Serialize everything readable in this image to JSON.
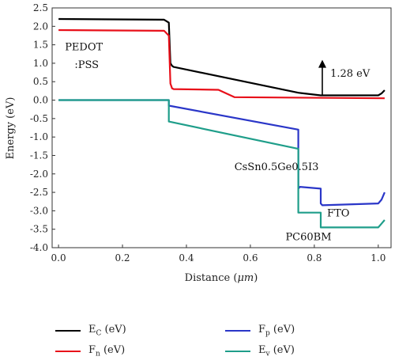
{
  "chart_data": {
    "type": "line",
    "xlabel_prefix": "Distance (",
    "xlabel_unit": "μm",
    "xlabel_suffix": ")",
    "ylabel": "Energy (eV)",
    "xlim": [
      -0.02,
      1.04
    ],
    "ylim": [
      -4.0,
      2.5
    ],
    "xticks": [
      "0.0",
      "0.2",
      "0.4",
      "0.6",
      "0.8",
      "1.0"
    ],
    "yticks": [
      "2.5",
      "2.0",
      "1.5",
      "1.0",
      "0.5",
      "0.0",
      "-0.5",
      "-1.0",
      "-1.5",
      "-2.0",
      "-2.5",
      "-3.0",
      "-3.5",
      "-4.0"
    ],
    "series": [
      {
        "name": "E_C (eV)",
        "color": "#000000",
        "x": [
          0.0,
          0.33,
          0.345,
          0.35,
          0.355,
          0.36,
          0.75,
          0.82,
          1.0,
          1.01,
          1.02
        ],
        "y": [
          2.2,
          2.18,
          2.1,
          1.0,
          0.93,
          0.9,
          0.2,
          0.13,
          0.13,
          0.18,
          0.27
        ]
      },
      {
        "name": "F_n (eV)",
        "color": "#e8101a",
        "x": [
          0.0,
          0.33,
          0.345,
          0.35,
          0.355,
          0.36,
          0.5,
          0.55,
          1.02
        ],
        "y": [
          1.9,
          1.88,
          1.75,
          0.45,
          0.32,
          0.3,
          0.28,
          0.08,
          0.05
        ]
      },
      {
        "name": "F_p (eV)",
        "color": "#2a36c8",
        "x": [
          0.0,
          0.34,
          0.345,
          0.345,
          0.75,
          0.75,
          0.755,
          0.82,
          0.82,
          0.825,
          1.0,
          1.01,
          1.02
        ],
        "y": [
          0.0,
          0.0,
          0.0,
          -0.15,
          -0.8,
          -2.4,
          -2.35,
          -2.4,
          -2.8,
          -2.85,
          -2.8,
          -2.7,
          -2.5
        ]
      },
      {
        "name": "E_v (eV)",
        "color": "#1f9e8a",
        "x": [
          0.0,
          0.34,
          0.345,
          0.345,
          0.75,
          0.75,
          0.82,
          0.82,
          1.0,
          1.01,
          1.02
        ],
        "y": [
          0.0,
          0.0,
          0.0,
          -0.58,
          -1.32,
          -3.05,
          -3.05,
          -3.45,
          -3.45,
          -3.35,
          -3.25
        ]
      }
    ],
    "annotations": [
      {
        "id": "pedot1",
        "text": "PEDOT",
        "x": 0.02,
        "y": 1.35
      },
      {
        "id": "pedot2",
        "text": ":PSS",
        "x": 0.05,
        "y": 0.87
      },
      {
        "id": "gap",
        "text": "1.28 eV",
        "x": 0.85,
        "y": 0.63
      },
      {
        "id": "perov",
        "text": "CsSn0.5Ge0.5I3",
        "x": 0.55,
        "y": -1.9
      },
      {
        "id": "fto",
        "text": "FTO",
        "x": 0.84,
        "y": -3.15
      },
      {
        "id": "pcbm",
        "text": "PC60BM",
        "x": 0.71,
        "y": -3.8
      }
    ],
    "arrow": {
      "x": 0.825,
      "y_from": 0.13,
      "y_to": 1.05
    }
  },
  "legend": [
    {
      "base": "E",
      "sub": "C",
      "suffix": " (eV)",
      "color": "#000000"
    },
    {
      "base": "F",
      "sub": "n",
      "suffix": " (eV)",
      "color": "#e8101a"
    },
    {
      "base": "F",
      "sub": "p",
      "suffix": " (eV)",
      "color": "#2a36c8"
    },
    {
      "base": "E",
      "sub": "v",
      "suffix": " (eV)",
      "color": "#1f9e8a"
    }
  ]
}
